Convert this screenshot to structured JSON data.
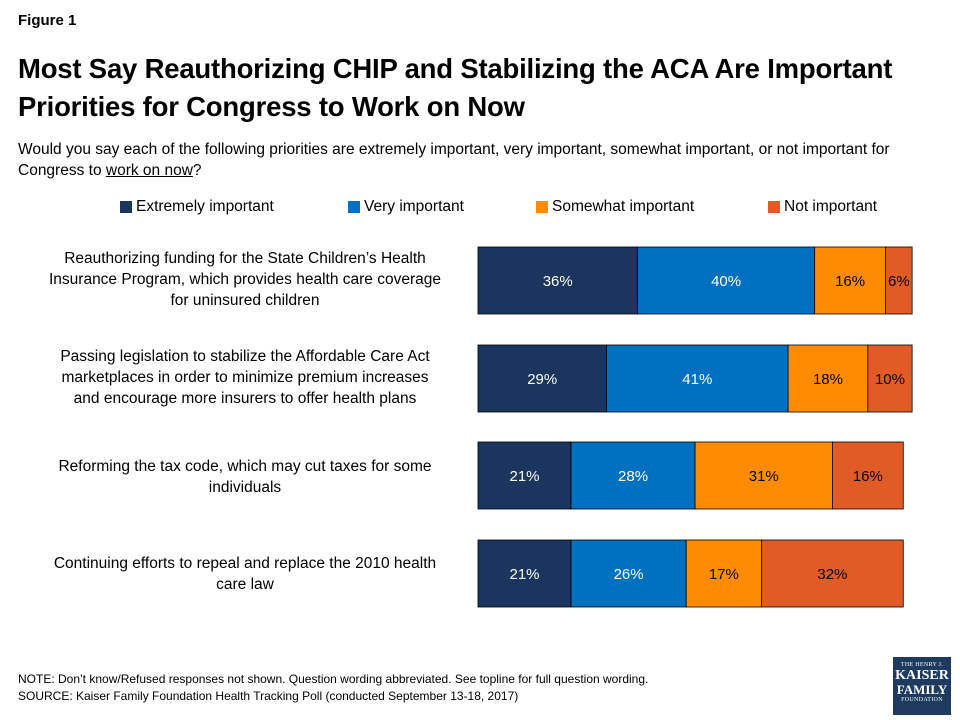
{
  "figure_label": "Figure 1",
  "title": "Most Say Reauthorizing CHIP and Stabilizing the ACA Are Important Priorities for Congress to Work on Now",
  "subtitle_pre": "Would you say each of the following priorities are extremely important, very important, somewhat important, or not important for Congress to ",
  "subtitle_underlined": "work on now",
  "subtitle_post": "?",
  "colors": {
    "extremely": "#1a355e",
    "very": "#0070c0",
    "somewhat": "#ff8c00",
    "not": "#e05c24"
  },
  "chart_data": {
    "type": "bar",
    "orientation": "horizontal",
    "stacked": true,
    "value_unit": "%",
    "categories": [
      "Reauthorizing funding for the State Children’s Health Insurance Program, which provides health care coverage for uninsured children",
      "Passing legislation to stabilize the Affordable Care Act marketplaces in order to minimize premium increases and encourage more insurers to offer health plans",
      "Reforming the tax code, which may cut taxes for some individuals",
      "Continuing efforts to repeal and replace the 2010 health care law"
    ],
    "category_lines": [
      [
        "Reauthorizing funding for the State Children’s Health",
        "Insurance Program, which provides health care coverage",
        "for uninsured children"
      ],
      [
        "Passing legislation to stabilize the Affordable Care Act",
        "marketplaces in order to minimize premium increases",
        "and encourage more insurers to offer health plans"
      ],
      [
        "Reforming the tax code, which may cut taxes for some",
        "individuals"
      ],
      [
        "Continuing efforts to repeal and replace the 2010 health",
        "care law"
      ]
    ],
    "series": [
      {
        "name": "Extremely important",
        "color": "#1a355e",
        "values": [
          36,
          29,
          21,
          21
        ]
      },
      {
        "name": "Very important",
        "color": "#0070c0",
        "values": [
          40,
          41,
          28,
          26
        ]
      },
      {
        "name": "Somewhat important",
        "color": "#ff8c00",
        "values": [
          16,
          18,
          31,
          17
        ]
      },
      {
        "name": "Not important",
        "color": "#e05c24",
        "values": [
          6,
          10,
          16,
          32
        ]
      }
    ],
    "legend_position": "top",
    "grid": false,
    "xlim": [
      0,
      100
    ]
  },
  "note": "NOTE: Don’t know/Refused responses not shown. Question wording abbreviated. See topline for full question wording.",
  "source": "SOURCE: Kaiser Family Foundation Health Tracking Poll (conducted September 13-18, 2017)",
  "logo": {
    "line1": "THE HENRY J.",
    "line2": "KAISER",
    "line3": "FAMILY",
    "line4": "FOUNDATION"
  }
}
